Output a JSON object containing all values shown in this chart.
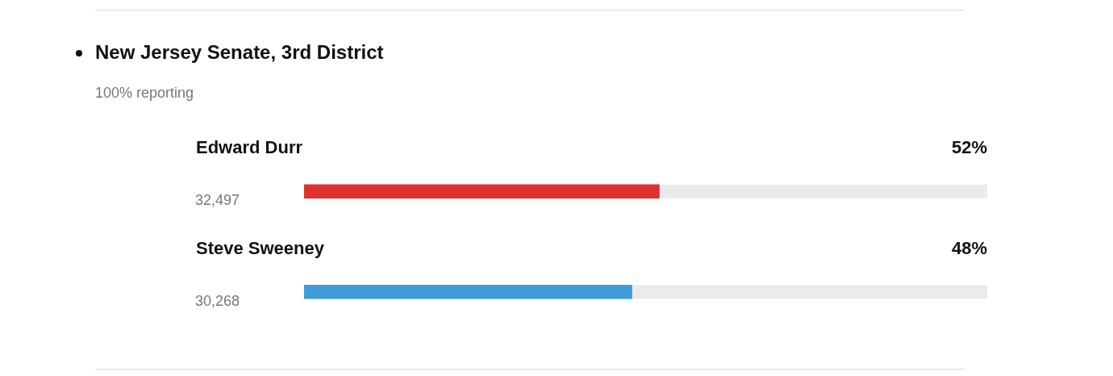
{
  "chart_data": {
    "type": "bar",
    "orientation": "horizontal",
    "title": "New Jersey Senate, 3rd District",
    "subtitle": "100% reporting",
    "categories": [
      "Edward Durr",
      "Steve Sweeney"
    ],
    "values": [
      52,
      48
    ],
    "colors": [
      "#e0302f",
      "#3e9dd8"
    ],
    "value_labels": [
      "52%",
      "48%"
    ],
    "annotations": [
      "32,497",
      "30,268"
    ],
    "xlim": [
      0,
      100
    ],
    "tick_labels": false,
    "grid": false,
    "legend": false
  }
}
